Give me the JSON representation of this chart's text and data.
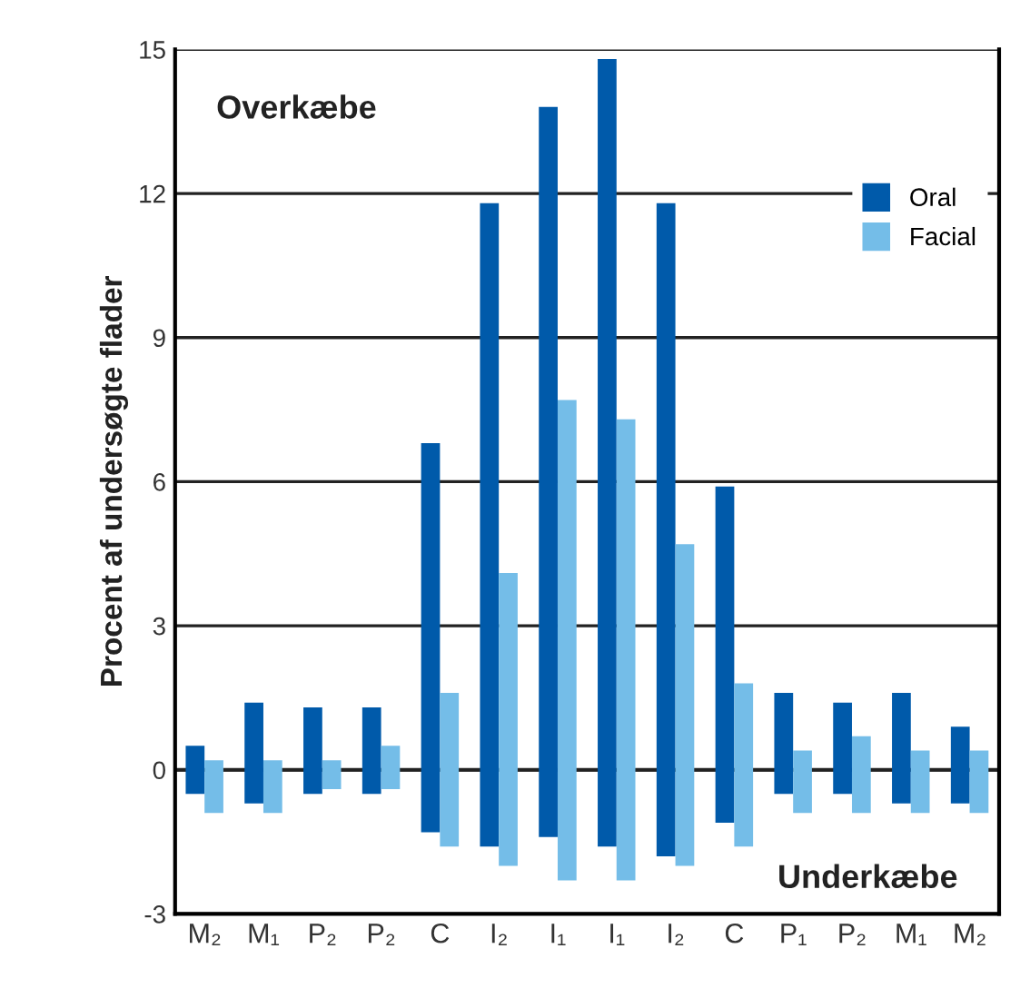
{
  "chart_data": {
    "type": "bar",
    "ylabel": "Procent af undersøgte flader",
    "categories": [
      "M₂",
      "M₁",
      "P₂",
      "P₂",
      "C",
      "I₂",
      "I₁",
      "I₁",
      "I₂",
      "C",
      "P₁",
      "P₂",
      "M₁",
      "M₂"
    ],
    "series": [
      {
        "name": "Oral",
        "color": "#005aaa",
        "values": [
          1.0,
          2.1,
          1.8,
          1.8,
          8.1,
          13.4,
          15.2,
          16.4,
          13.6,
          7.0,
          2.1,
          1.9,
          2.3,
          1.6
        ],
        "base": [
          -0.5,
          -0.7,
          -0.5,
          -0.5,
          -1.3,
          -1.6,
          -1.4,
          -1.6,
          -1.8,
          -1.1,
          -0.5,
          -0.5,
          -0.7,
          -0.7
        ]
      },
      {
        "name": "Facial",
        "color": "#74bde8",
        "values": [
          1.1,
          1.1,
          0.6,
          0.9,
          3.2,
          6.1,
          10.0,
          9.6,
          6.7,
          3.4,
          1.3,
          1.6,
          1.3,
          1.3
        ],
        "base": [
          -0.9,
          -0.9,
          -0.4,
          -0.4,
          -1.6,
          -2.0,
          -2.3,
          -2.3,
          -2.0,
          -1.6,
          -0.9,
          -0.9,
          -0.9,
          -0.9
        ]
      }
    ],
    "ylim": [
      -3,
      15
    ],
    "yticks": [
      -3,
      0,
      3,
      6,
      9,
      12,
      15
    ],
    "ref_lines": [
      {
        "axis": "y",
        "value": 0,
        "color": "#222222"
      }
    ],
    "annotations": [
      "Overkæbe",
      "Underkæbe"
    ],
    "grid": "y",
    "legend": "top right"
  }
}
